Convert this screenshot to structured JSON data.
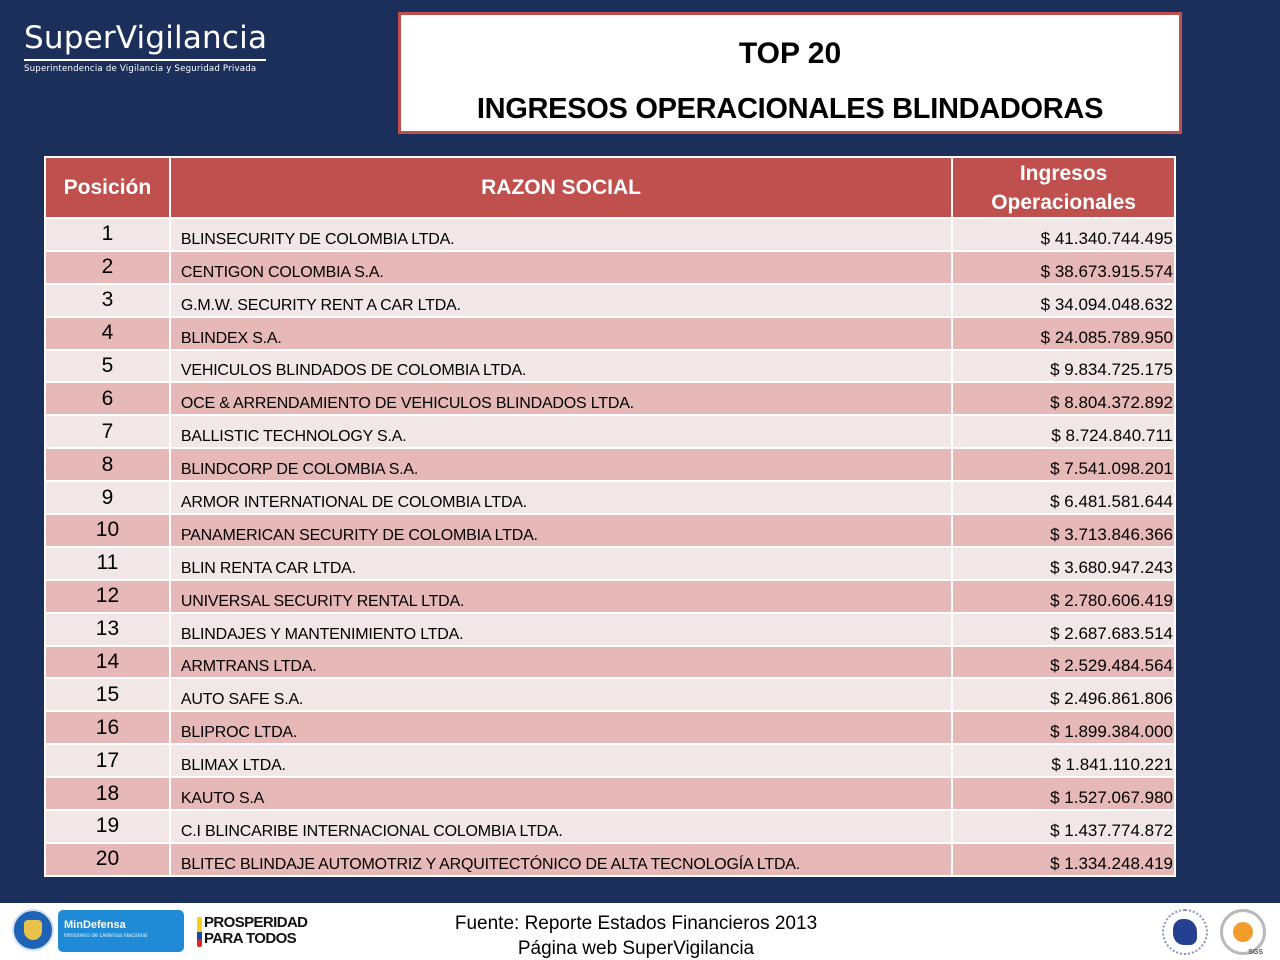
{
  "logo": {
    "title": "SuperVigilancia",
    "subtitle": "Superintendencia de Vigilancia y Seguridad Privada"
  },
  "title": {
    "line1": "TOP 20",
    "line2": "INGRESOS OPERACIONALES  BLINDADORAS"
  },
  "colors": {
    "background": "#1b2f5a",
    "header": "#c0504d",
    "row_light": "#f2e7e7",
    "row_dark": "#e6b9b8"
  },
  "table": {
    "headers": {
      "position": "Posición",
      "name": "RAZON SOCIAL",
      "value_line1": "Ingresos",
      "value_line2": "Operacionales"
    },
    "rows": [
      {
        "pos": "1",
        "name": "BLINSECURITY DE COLOMBIA LTDA.",
        "value": "$ 41.340.744.495"
      },
      {
        "pos": "2",
        "name": "CENTIGON COLOMBIA S.A.",
        "value": "$ 38.673.915.574"
      },
      {
        "pos": "3",
        "name": "G.M.W. SECURITY RENT A CAR LTDA.",
        "value": "$ 34.094.048.632"
      },
      {
        "pos": "4",
        "name": "BLINDEX S.A.",
        "value": "$ 24.085.789.950"
      },
      {
        "pos": "5",
        "name": "VEHICULOS BLINDADOS DE COLOMBIA LTDA.",
        "value": "$ 9.834.725.175"
      },
      {
        "pos": "6",
        "name": "OCE & ARRENDAMIENTO DE VEHICULOS BLINDADOS LTDA.",
        "value": "$ 8.804.372.892"
      },
      {
        "pos": "7",
        "name": "BALLISTIC TECHNOLOGY S.A.",
        "value": "$ 8.724.840.711"
      },
      {
        "pos": "8",
        "name": "BLINDCORP DE COLOMBIA S.A.",
        "value": "$ 7.541.098.201"
      },
      {
        "pos": "9",
        "name": "ARMOR INTERNATIONAL DE COLOMBIA LTDA.",
        "value": "$ 6.481.581.644"
      },
      {
        "pos": "10",
        "name": "PANAMERICAN SECURITY DE COLOMBIA LTDA.",
        "value": "$ 3.713.846.366"
      },
      {
        "pos": "11",
        "name": "BLIN RENTA CAR LTDA.",
        "value": "$ 3.680.947.243"
      },
      {
        "pos": "12",
        "name": "UNIVERSAL SECURITY RENTAL LTDA.",
        "value": "$ 2.780.606.419"
      },
      {
        "pos": "13",
        "name": "BLINDAJES Y MANTENIMIENTO LTDA.",
        "value": "$ 2.687.683.514"
      },
      {
        "pos": "14",
        "name": "ARMTRANS LTDA.",
        "value": "$ 2.529.484.564"
      },
      {
        "pos": "15",
        "name": "AUTO SAFE S.A.",
        "value": "$ 2.496.861.806"
      },
      {
        "pos": "16",
        "name": "BLIPROC LTDA.",
        "value": "$ 1.899.384.000"
      },
      {
        "pos": "17",
        "name": "BLIMAX LTDA.",
        "value": "$ 1.841.110.221"
      },
      {
        "pos": "18",
        "name": "KAUTO S.A",
        "value": "$ 1.527.067.980"
      },
      {
        "pos": "19",
        "name": "C.I BLINCARIBE INTERNACIONAL COLOMBIA LTDA.",
        "value": "$ 1.437.774.872"
      },
      {
        "pos": "20",
        "name": "BLITEC BLINDAJE AUTOMOTRIZ Y ARQUITECTÓNICO DE ALTA TECNOLOGÍA LTDA.",
        "value": "$ 1.334.248.419"
      }
    ]
  },
  "footer": {
    "source_line1": "Fuente: Reporte Estados Financieros 2013",
    "source_line2": "Página web SuperVigilancia",
    "mindefensa_title": "MinDefensa",
    "mindefensa_subtitle": "Ministerio de Defensa Nacional",
    "prosperidad_line1": "PROSPERIDAD",
    "prosperidad_line2": "PARA TODOS",
    "sgs_label": "SGS"
  }
}
